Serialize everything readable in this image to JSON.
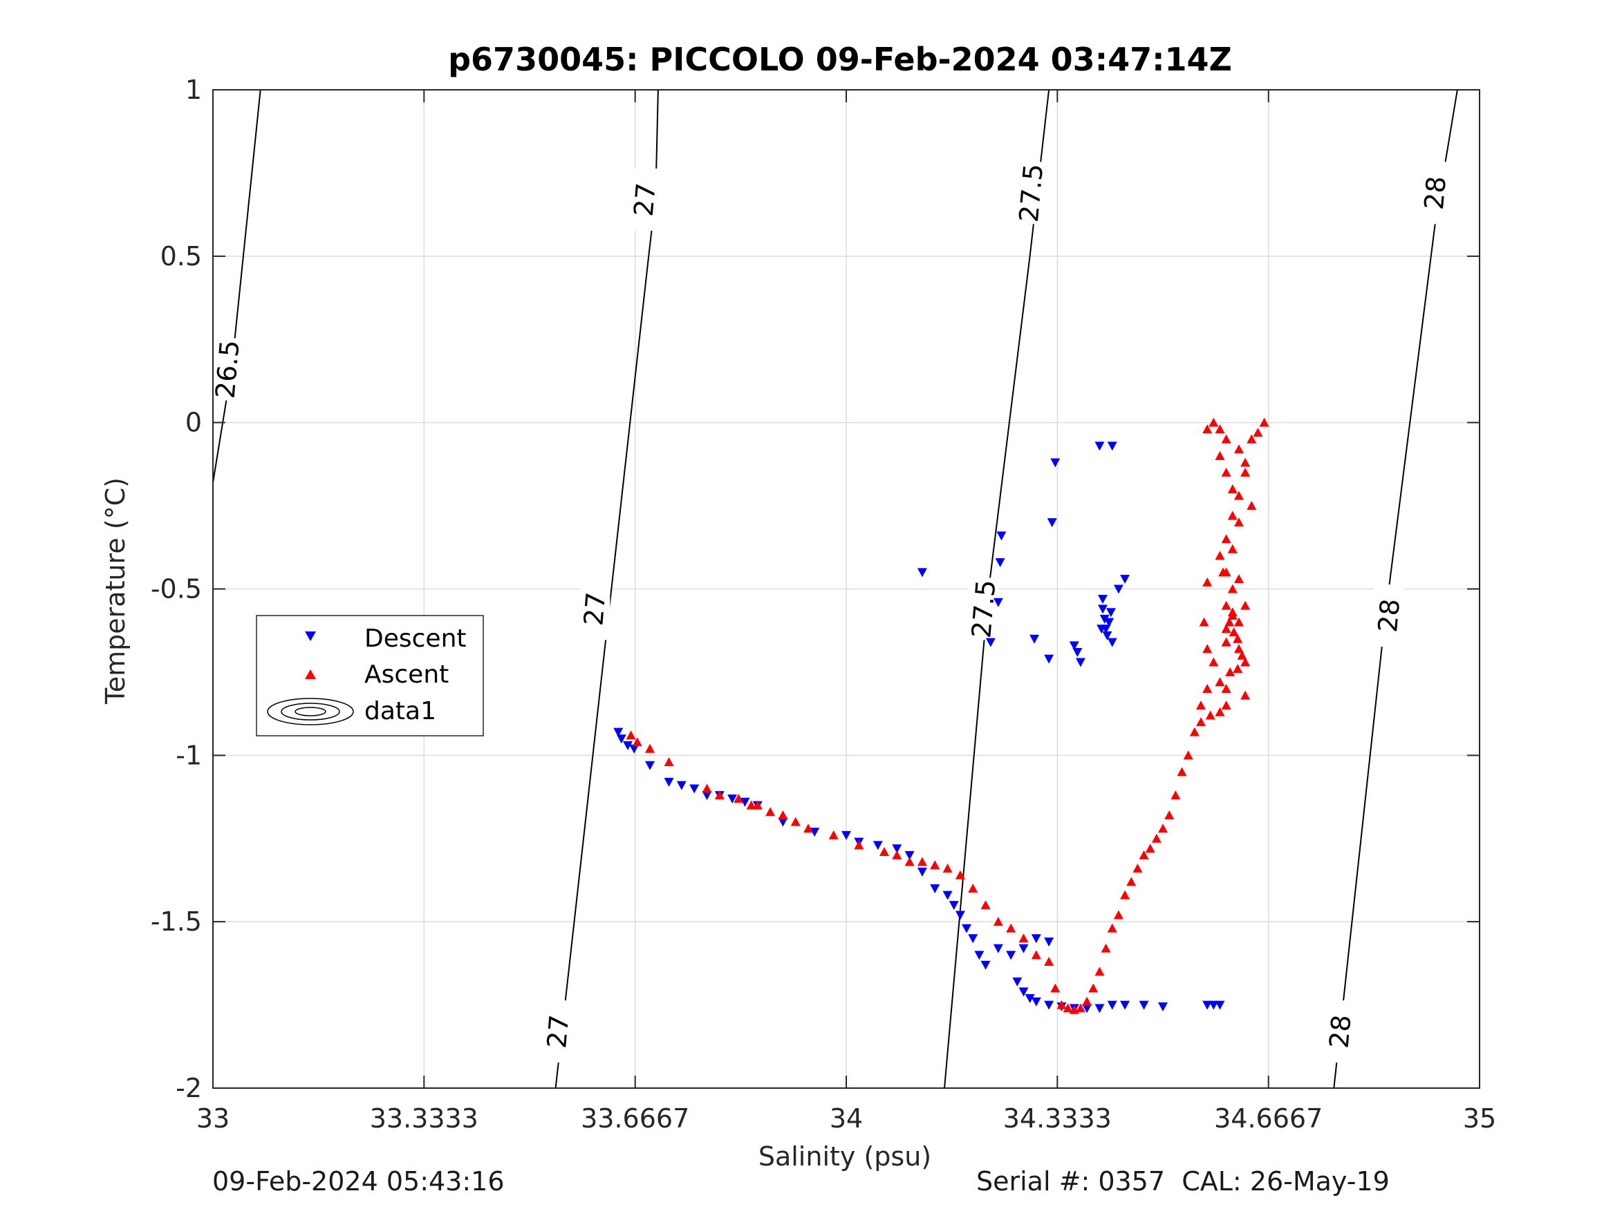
{
  "chart_data": {
    "type": "scatter",
    "title": "p6730045: PICCOLO 09-Feb-2024 03:47:14Z",
    "xlabel": "Salinity (psu)",
    "ylabel": "Temperature (°C)",
    "xlim": [
      33,
      35
    ],
    "ylim": [
      -2,
      1
    ],
    "xticks": [
      33,
      33.3333,
      33.6667,
      34,
      34.3333,
      34.6667,
      35
    ],
    "xtick_labels": [
      "33",
      "33.3333",
      "33.6667",
      "34",
      "34.3333",
      "34.6667",
      "35"
    ],
    "yticks": [
      1,
      0.5,
      0,
      -0.5,
      -1,
      -1.5,
      -2
    ],
    "ytick_labels": [
      "1",
      "0.5",
      "0",
      "-0.5",
      "-1",
      "-1.5",
      "-2"
    ],
    "grid": true,
    "legend_position": "middle-left",
    "legend": [
      "Descent",
      "Ascent",
      "data1"
    ],
    "density_contours": [
      {
        "label": "26.5",
        "points": [
          [
            33.0,
            -0.18
          ],
          [
            33.03,
            0.17
          ],
          [
            33.075,
            1.0
          ]
        ],
        "label_at": [
          33.023,
          0.16
        ]
      },
      {
        "label": "27",
        "points": [
          [
            33.541,
            -2.0
          ],
          [
            33.688,
            0.5
          ],
          [
            33.699,
            0.68
          ],
          [
            33.703,
            1.0
          ]
        ],
        "label_at": [
          [
            33.545,
            -1.83
          ],
          [
            33.603,
            -0.56
          ],
          [
            33.682,
            0.67
          ]
        ]
      },
      {
        "label": "27.5",
        "points": [
          [
            34.155,
            -2.0
          ],
          [
            34.225,
            -0.5
          ],
          [
            34.29,
            0.5
          ],
          [
            34.32,
            1.0
          ]
        ],
        "label_at": [
          [
            34.217,
            -0.56
          ],
          [
            34.292,
            0.69
          ]
        ]
      },
      {
        "label": "28",
        "points": [
          [
            34.77,
            -2.0
          ],
          [
            34.85,
            -0.6
          ],
          [
            34.93,
            0.6
          ],
          [
            34.965,
            1.0
          ]
        ],
        "label_at": [
          [
            34.78,
            -1.83
          ],
          [
            34.857,
            -0.58
          ],
          [
            34.93,
            0.69
          ]
        ]
      }
    ],
    "series": [
      {
        "name": "Descent",
        "marker": "triangle-down",
        "color": "#0000ff",
        "x": [
          33.64,
          33.645,
          33.655,
          33.665,
          33.69,
          33.72,
          33.74,
          33.76,
          33.78,
          33.8,
          33.82,
          33.84,
          33.86,
          33.9,
          33.95,
          34.0,
          34.02,
          34.05,
          34.08,
          34.1,
          34.12,
          34.14,
          34.16,
          34.17,
          34.18,
          34.19,
          34.2,
          34.21,
          34.22,
          34.24,
          34.26,
          34.28,
          34.3,
          34.32,
          34.27,
          34.28,
          34.29,
          34.3,
          34.32,
          34.34,
          34.36,
          34.38,
          34.4,
          34.42,
          34.44,
          34.47,
          34.5,
          34.57,
          34.58,
          34.59,
          34.245,
          34.243,
          34.24,
          34.228,
          34.297,
          34.325,
          34.33,
          34.365,
          34.4,
          34.42,
          34.12,
          34.405,
          34.405,
          34.408,
          34.41,
          34.412,
          34.415,
          34.418,
          34.42,
          34.43,
          34.44,
          34.37,
          34.403,
          34.36,
          34.32
        ],
        "y": [
          -0.93,
          -0.95,
          -0.97,
          -0.98,
          -1.03,
          -1.08,
          -1.09,
          -1.1,
          -1.12,
          -1.12,
          -1.13,
          -1.14,
          -1.15,
          -1.2,
          -1.23,
          -1.24,
          -1.26,
          -1.27,
          -1.28,
          -1.3,
          -1.35,
          -1.4,
          -1.42,
          -1.45,
          -1.48,
          -1.52,
          -1.55,
          -1.6,
          -1.63,
          -1.58,
          -1.6,
          -1.58,
          -1.55,
          -1.56,
          -1.68,
          -1.71,
          -1.73,
          -1.74,
          -1.75,
          -1.755,
          -1.76,
          -1.76,
          -1.76,
          -1.75,
          -1.75,
          -1.75,
          -1.755,
          -1.75,
          -1.75,
          -1.75,
          -0.34,
          -0.42,
          -0.54,
          -0.66,
          -0.65,
          -0.3,
          -0.12,
          -0.69,
          -0.07,
          -0.07,
          -0.45,
          -0.53,
          -0.56,
          -0.59,
          -0.62,
          -0.64,
          -0.6,
          -0.57,
          -0.66,
          -0.5,
          -0.47,
          -0.72,
          -0.62,
          -0.67,
          -0.71
        ]
      },
      {
        "name": "Ascent",
        "marker": "triangle-up",
        "color": "#ff0000",
        "x": [
          33.66,
          33.67,
          33.69,
          33.72,
          33.78,
          33.8,
          33.83,
          33.85,
          33.86,
          33.88,
          33.9,
          33.92,
          33.94,
          33.98,
          34.02,
          34.06,
          34.08,
          34.1,
          34.12,
          34.14,
          34.16,
          34.18,
          34.2,
          34.22,
          34.24,
          34.26,
          34.28,
          34.3,
          34.32,
          34.33,
          34.34,
          34.35,
          34.36,
          34.37,
          34.38,
          34.39,
          34.4,
          34.41,
          34.42,
          34.43,
          34.44,
          34.45,
          34.46,
          34.47,
          34.48,
          34.49,
          34.5,
          34.51,
          34.52,
          34.53,
          34.54,
          34.55,
          34.56,
          34.57,
          34.58,
          34.6,
          34.62,
          34.63,
          34.61,
          34.6,
          34.59,
          34.6,
          34.61,
          34.62,
          34.63,
          34.62,
          34.6,
          34.59,
          34.58,
          34.57,
          34.59,
          34.6,
          34.61,
          34.63,
          34.64,
          34.65,
          34.66,
          34.64,
          34.62,
          34.61,
          34.595,
          34.57,
          34.6,
          34.61,
          34.605,
          34.612,
          34.618,
          34.62,
          34.625,
          34.63,
          34.618,
          34.606,
          34.6,
          34.63,
          34.6,
          34.59,
          34.575,
          34.56,
          34.59,
          34.6,
          34.61,
          34.62,
          34.6,
          34.57,
          34.565
        ],
        "y": [
          -0.94,
          -0.96,
          -0.98,
          -1.02,
          -1.1,
          -1.12,
          -1.13,
          -1.15,
          -1.15,
          -1.17,
          -1.18,
          -1.2,
          -1.22,
          -1.24,
          -1.27,
          -1.29,
          -1.3,
          -1.32,
          -1.32,
          -1.33,
          -1.34,
          -1.36,
          -1.4,
          -1.45,
          -1.5,
          -1.52,
          -1.55,
          -1.6,
          -1.62,
          -1.7,
          -1.75,
          -1.76,
          -1.765,
          -1.76,
          -1.74,
          -1.7,
          -1.65,
          -1.58,
          -1.52,
          -1.48,
          -1.42,
          -1.38,
          -1.34,
          -1.3,
          -1.28,
          -1.25,
          -1.22,
          -1.18,
          -1.12,
          -1.05,
          -1.0,
          -0.93,
          -0.85,
          -0.8,
          -0.72,
          -0.66,
          -0.6,
          -0.55,
          -0.5,
          -0.45,
          -0.4,
          -0.35,
          -0.28,
          -0.22,
          -0.15,
          -0.08,
          -0.05,
          -0.02,
          0.0,
          -0.02,
          -0.1,
          -0.15,
          -0.2,
          -0.12,
          -0.05,
          -0.03,
          0.0,
          -0.25,
          -0.3,
          -0.38,
          -0.45,
          -0.48,
          -0.55,
          -0.57,
          -0.6,
          -0.63,
          -0.65,
          -0.68,
          -0.7,
          -0.72,
          -0.74,
          -0.75,
          -0.8,
          -0.82,
          -0.85,
          -0.87,
          -0.88,
          -0.9,
          -0.78,
          -0.62,
          -0.58,
          -0.47,
          -0.66,
          -0.68,
          -0.6
        ]
      }
    ]
  },
  "footer": {
    "left": "09-Feb-2024 05:43:16",
    "right": "Serial #: 0357  CAL: 26-May-19"
  }
}
